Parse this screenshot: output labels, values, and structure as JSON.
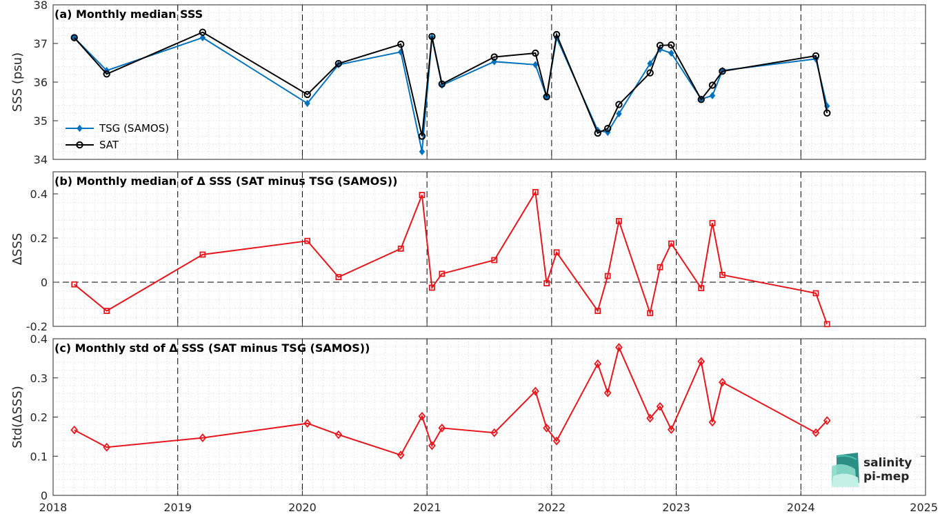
{
  "colors": {
    "tsg": "#0072bd",
    "sat": "#000000",
    "delta": "#e8141b",
    "logo": "#14a08c",
    "logo_dark": "#1e5c5a",
    "grid": "#d9d9d9"
  },
  "x_axis": {
    "range": [
      2018,
      2025
    ],
    "ticks": [
      2018,
      2019,
      2020,
      2021,
      2022,
      2023,
      2024,
      2025
    ],
    "tick_labels": [
      "2018",
      "2019",
      "2020",
      "2021",
      "2022",
      "2023",
      "2024",
      "2025"
    ]
  },
  "chart_data": [
    {
      "type": "line",
      "title": "(a) Monthly median SSS",
      "xlabel": "",
      "ylabel": "SSS (psu)",
      "ylim": [
        34,
        38
      ],
      "yticks": [
        34,
        35,
        36,
        37,
        38
      ],
      "ytick_labels": [
        "34",
        "35",
        "36",
        "37",
        "38"
      ],
      "grid": "on (dotted)",
      "legend_placement": "bottom-left",
      "x": [
        2018.17,
        2018.43,
        2019.2,
        2020.04,
        2020.29,
        2020.79,
        2020.96,
        2021.04,
        2021.12,
        2021.54,
        2021.87,
        2021.96,
        2022.04,
        2022.37,
        2022.45,
        2022.54,
        2022.79,
        2022.87,
        2022.96,
        2023.2,
        2023.29,
        2023.37,
        2024.12,
        2024.21
      ],
      "series": [
        {
          "name": "TSG (SAMOS)",
          "marker": "filled-diamond",
          "values": [
            37.15,
            36.3,
            37.15,
            35.45,
            36.45,
            36.78,
            34.2,
            37.15,
            35.92,
            36.53,
            36.45,
            35.62,
            37.15,
            34.75,
            34.7,
            35.18,
            36.48,
            36.85,
            36.75,
            35.56,
            35.65,
            36.3,
            36.6,
            35.38
          ]
        },
        {
          "name": "SAT",
          "marker": "open-circle",
          "values": [
            37.15,
            36.21,
            37.29,
            35.68,
            36.48,
            36.98,
            34.6,
            37.18,
            35.95,
            36.65,
            36.75,
            35.62,
            37.23,
            34.68,
            34.8,
            35.42,
            36.24,
            36.95,
            36.96,
            35.55,
            35.92,
            36.28,
            36.68,
            35.2
          ]
        }
      ]
    },
    {
      "type": "line",
      "title": "(b) Monthly median of Δ SSS (SAT minus TSG (SAMOS))",
      "xlabel": "",
      "ylabel": "ΔSSS",
      "ylim": [
        -0.2,
        0.5
      ],
      "yticks": [
        -0.2,
        0,
        0.2,
        0.4
      ],
      "ytick_labels": [
        "-0.2",
        "0",
        "0.2",
        "0.4"
      ],
      "grid": "on (dotted)",
      "zero_line": "dashed",
      "x": [
        2018.17,
        2018.43,
        2019.2,
        2020.04,
        2020.29,
        2020.79,
        2020.96,
        2021.04,
        2021.12,
        2021.54,
        2021.87,
        2021.96,
        2022.04,
        2022.37,
        2022.45,
        2022.54,
        2022.79,
        2022.87,
        2022.96,
        2023.2,
        2023.29,
        2023.37,
        2024.12,
        2024.21
      ],
      "series": [
        {
          "name": "",
          "marker": "open-square",
          "values": [
            -0.01,
            -0.13,
            0.125,
            0.187,
            0.023,
            0.152,
            0.395,
            -0.025,
            0.038,
            0.1,
            0.408,
            -0.005,
            0.135,
            -0.13,
            0.028,
            0.277,
            -0.14,
            0.068,
            0.175,
            -0.027,
            0.268,
            0.033,
            -0.05,
            -0.19
          ]
        }
      ]
    },
    {
      "type": "line",
      "title": "(c) Monthly std of Δ SSS (SAT minus TSG (SAMOS))",
      "xlabel": "",
      "ylabel": "Std(ΔSSS)",
      "ylim": [
        0,
        0.4
      ],
      "yticks": [
        0,
        0.1,
        0.2,
        0.3,
        0.4
      ],
      "ytick_labels": [
        "0",
        "0.1",
        "0.2",
        "0.3",
        "0.4"
      ],
      "grid": "on (dotted)",
      "x": [
        2018.17,
        2018.43,
        2019.2,
        2020.04,
        2020.29,
        2020.79,
        2020.96,
        2021.04,
        2021.12,
        2021.54,
        2021.87,
        2021.96,
        2022.04,
        2022.37,
        2022.45,
        2022.54,
        2022.79,
        2022.87,
        2022.96,
        2023.2,
        2023.29,
        2023.37,
        2024.12,
        2024.21
      ],
      "series": [
        {
          "name": "",
          "marker": "open-diamond",
          "values": [
            0.167,
            0.123,
            0.147,
            0.184,
            0.155,
            0.103,
            0.202,
            0.127,
            0.172,
            0.16,
            0.266,
            0.172,
            0.139,
            0.336,
            0.262,
            0.378,
            0.197,
            0.227,
            0.168,
            0.342,
            0.187,
            0.289,
            0.16,
            0.191
          ]
        }
      ]
    }
  ],
  "logo": {
    "line1": "salinity",
    "line2": "pi-mep"
  }
}
